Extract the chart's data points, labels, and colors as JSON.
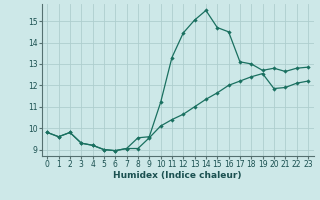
{
  "title": "",
  "xlabel": "Humidex (Indice chaleur)",
  "ylabel": "",
  "background_color": "#cde8e8",
  "grid_color": "#aecece",
  "line_color": "#1a7060",
  "xlim": [
    -0.5,
    23.5
  ],
  "ylim": [
    8.7,
    15.8
  ],
  "yticks": [
    9,
    10,
    11,
    12,
    13,
    14,
    15
  ],
  "xticks": [
    0,
    1,
    2,
    3,
    4,
    5,
    6,
    7,
    8,
    9,
    10,
    11,
    12,
    13,
    14,
    15,
    16,
    17,
    18,
    19,
    20,
    21,
    22,
    23
  ],
  "series1_x": [
    0,
    1,
    2,
    3,
    4,
    5,
    6,
    7,
    8,
    9,
    10,
    11,
    12,
    13,
    14,
    15,
    16,
    17,
    18,
    19,
    20,
    21,
    22,
    23
  ],
  "series1_y": [
    9.8,
    9.6,
    9.8,
    9.3,
    9.2,
    9.0,
    8.95,
    9.05,
    9.05,
    9.55,
    10.1,
    10.4,
    10.65,
    11.0,
    11.35,
    11.65,
    12.0,
    12.2,
    12.4,
    12.55,
    11.85,
    11.9,
    12.1,
    12.2
  ],
  "series2_x": [
    0,
    1,
    2,
    3,
    4,
    5,
    6,
    7,
    8,
    9,
    10,
    11,
    12,
    13,
    14,
    15,
    16,
    17,
    18,
    19,
    20,
    21,
    22,
    23
  ],
  "series2_y": [
    9.8,
    9.6,
    9.8,
    9.3,
    9.2,
    9.0,
    8.95,
    9.05,
    9.55,
    9.6,
    11.2,
    13.3,
    14.45,
    15.05,
    15.5,
    14.7,
    14.5,
    13.1,
    13.0,
    12.7,
    12.8,
    12.65,
    12.8,
    12.85
  ],
  "tick_fontsize": 5.5,
  "xlabel_fontsize": 6.5
}
